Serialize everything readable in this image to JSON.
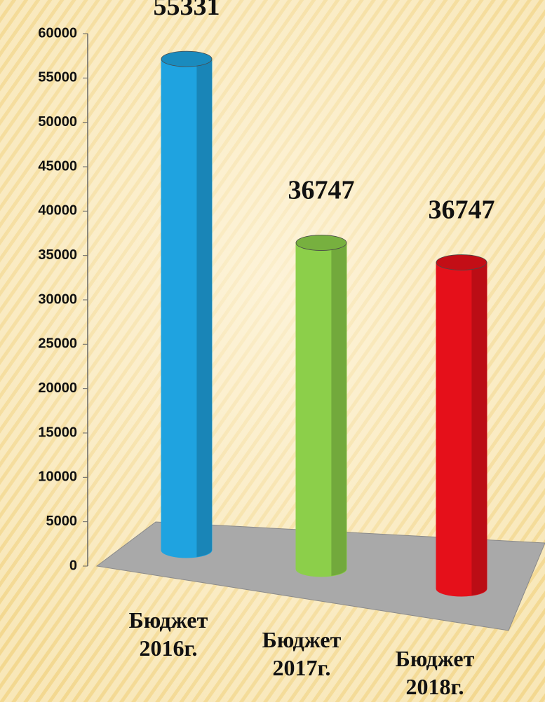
{
  "chart_data": {
    "type": "bar",
    "categories": [
      "Бюджет 2016г.",
      "Бюджет 2017г.",
      "Бюджет 2018г."
    ],
    "series": [
      {
        "values": [
          55331,
          36747,
          36747
        ],
        "colors": [
          "#1fa3e0",
          "#8ccf4a",
          "#e5101a"
        ]
      }
    ],
    "ylim": [
      0,
      60000
    ],
    "yticks": [
      0,
      5000,
      10000,
      15000,
      20000,
      25000,
      30000,
      35000,
      40000,
      45000,
      50000,
      55000,
      60000
    ]
  }
}
